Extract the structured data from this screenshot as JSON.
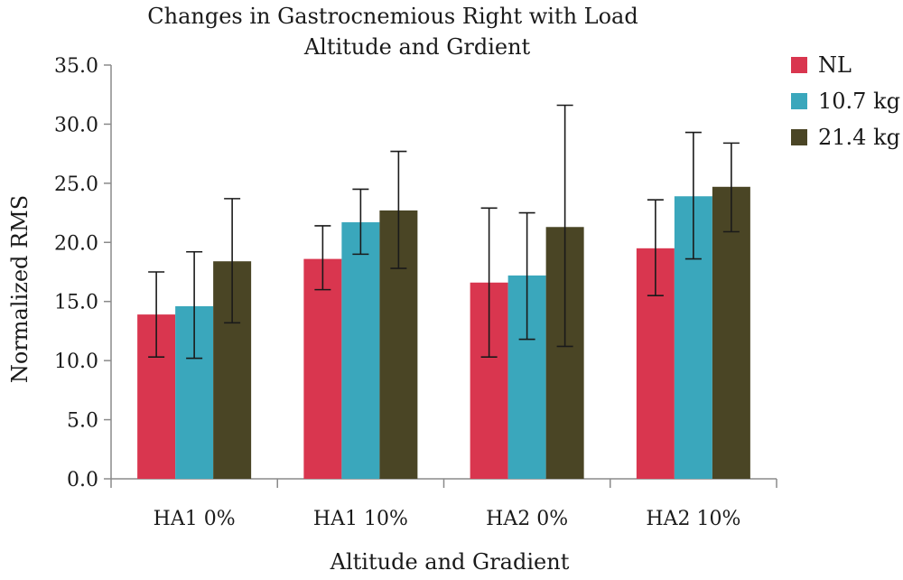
{
  "chart_data": {
    "type": "bar",
    "title_line1": "Changes in Gastrocnemious Right with Load",
    "title_line2": "Altitude and Grdient",
    "xlabel": "Altitude and Gradient",
    "ylabel": "Normalized RMS",
    "ylim": [
      0,
      35
    ],
    "yticks": [
      "0.0",
      "5.0",
      "10.0",
      "15.0",
      "20.0",
      "25.0",
      "30.0",
      "35.0"
    ],
    "grid": false,
    "legend_position": "top-right",
    "categories": [
      "HA1 0%",
      "HA1 10%",
      "HA2 0%",
      "HA2 10%"
    ],
    "series": [
      {
        "name": "NL",
        "color": "#d9364f",
        "values": [
          13.9,
          18.6,
          16.6,
          19.5
        ],
        "err_low": [
          10.3,
          16.0,
          10.3,
          15.5
        ],
        "err_high": [
          17.5,
          21.4,
          22.9,
          23.6
        ]
      },
      {
        "name": "10.7 kg",
        "color": "#3aa7bc",
        "values": [
          14.6,
          21.7,
          17.2,
          23.9
        ],
        "err_low": [
          10.2,
          19.0,
          11.8,
          18.6
        ],
        "err_high": [
          19.2,
          24.5,
          22.5,
          29.3
        ]
      },
      {
        "name": "21.4 kg",
        "color": "#4a4525",
        "values": [
          18.4,
          22.7,
          21.3,
          24.7
        ],
        "err_low": [
          13.2,
          17.8,
          11.2,
          20.9
        ],
        "err_high": [
          23.7,
          27.7,
          31.6,
          28.4
        ]
      }
    ]
  }
}
